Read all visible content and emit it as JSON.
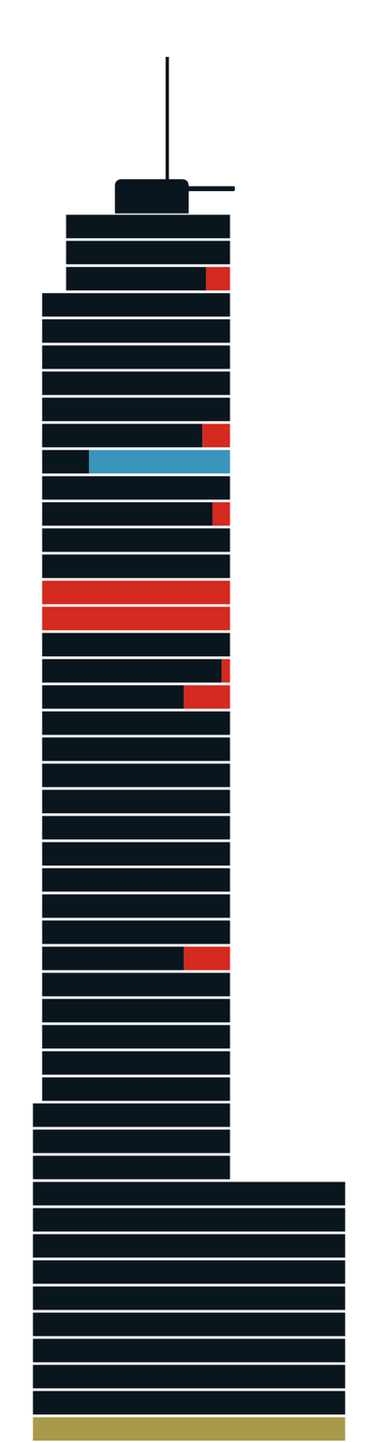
{
  "chart_data": {
    "type": "bar",
    "orientation": "horizontal",
    "stacked": true,
    "tick_labels": false,
    "grid": false,
    "categories": [
      null,
      null,
      null,
      null,
      null,
      null,
      null,
      null,
      null,
      null,
      null,
      null,
      null,
      null,
      null,
      null,
      null,
      null,
      null,
      null,
      null,
      null,
      null,
      null,
      null,
      null,
      null,
      null,
      null,
      null,
      null,
      null,
      null,
      null,
      null,
      null,
      null,
      null,
      null,
      null,
      null,
      null,
      null,
      null,
      null,
      null,
      null
    ],
    "xlim": [
      0,
      340
    ],
    "series": [
      {
        "color": "none",
        "values": [
          36,
          36,
          36,
          10,
          10,
          10,
          10,
          10,
          10,
          10,
          10,
          10,
          10,
          10,
          10,
          10,
          10,
          10,
          10,
          10,
          10,
          10,
          10,
          10,
          10,
          10,
          10,
          10,
          10,
          10,
          10,
          10,
          10,
          10,
          0,
          0,
          0,
          0,
          0,
          0,
          0,
          0,
          0,
          0,
          0,
          0,
          0
        ]
      },
      {
        "color": "#0a161e",
        "values": [
          178,
          178,
          152,
          204,
          204,
          204,
          204,
          204,
          174,
          51,
          204,
          185,
          204,
          204,
          0,
          0,
          204,
          195,
          154,
          204,
          204,
          204,
          204,
          204,
          204,
          204,
          204,
          204,
          154,
          204,
          204,
          204,
          204,
          204,
          214,
          214,
          214,
          339,
          339,
          339,
          339,
          339,
          339,
          339,
          339,
          339,
          0
        ]
      },
      {
        "color": "#d42a1f",
        "values": [
          0,
          0,
          26,
          0,
          0,
          0,
          0,
          0,
          30,
          0,
          0,
          19,
          0,
          0,
          204,
          204,
          0,
          9,
          50,
          0,
          0,
          0,
          0,
          0,
          0,
          0,
          0,
          0,
          50,
          0,
          0,
          0,
          0,
          0,
          0,
          0,
          0,
          0,
          0,
          0,
          0,
          0,
          0,
          0,
          0,
          0,
          0
        ]
      },
      {
        "color": "#3a95bd",
        "values": [
          0,
          0,
          0,
          0,
          0,
          0,
          0,
          0,
          0,
          153,
          0,
          0,
          0,
          0,
          0,
          0,
          0,
          0,
          0,
          0,
          0,
          0,
          0,
          0,
          0,
          0,
          0,
          0,
          0,
          0,
          0,
          0,
          0,
          0,
          0,
          0,
          0,
          0,
          0,
          0,
          0,
          0,
          0,
          0,
          0,
          0,
          0
        ]
      },
      {
        "color": "#a99a4a",
        "values": [
          0,
          0,
          0,
          0,
          0,
          0,
          0,
          0,
          0,
          0,
          0,
          0,
          0,
          0,
          0,
          0,
          0,
          0,
          0,
          0,
          0,
          0,
          0,
          0,
          0,
          0,
          0,
          0,
          0,
          0,
          0,
          0,
          0,
          0,
          0,
          0,
          0,
          0,
          0,
          0,
          0,
          0,
          0,
          0,
          0,
          0,
          339
        ]
      }
    ]
  }
}
